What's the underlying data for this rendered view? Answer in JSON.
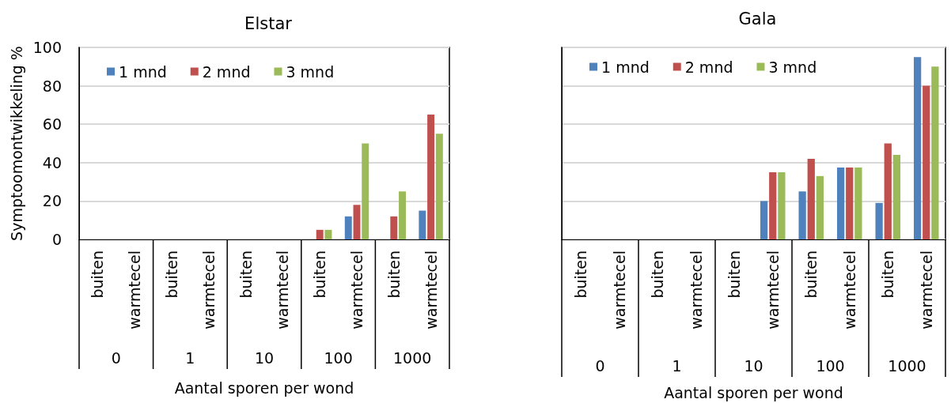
{
  "chart_data": [
    {
      "type": "bar",
      "title": "Elstar",
      "xlabel": "Aantal sporen per wond",
      "ylabel": "Symptoomontwikkeling %",
      "categories": [
        "buiten",
        "warmtecel",
        "buiten",
        "warmtecel",
        "buiten",
        "warmtecel",
        "buiten",
        "warmtecel",
        "buiten",
        "warmtecel"
      ],
      "annotations": [
        "0",
        "1",
        "10",
        "100",
        "1000"
      ],
      "series": [
        {
          "name": "1 mnd",
          "color": "#4f81bd",
          "values": [
            0,
            0,
            0,
            0,
            0,
            0,
            0,
            12,
            0,
            15
          ]
        },
        {
          "name": "2 mnd",
          "color": "#c0504d",
          "values": [
            0,
            0,
            0,
            0,
            0,
            0,
            5,
            18,
            12,
            65
          ]
        },
        {
          "name": "3 mnd",
          "color": "#9bbb59",
          "values": [
            0,
            0,
            0,
            0,
            0,
            0,
            5,
            50,
            25,
            55
          ]
        }
      ],
      "ylim": [
        0,
        100
      ],
      "yticks": [
        0,
        20,
        40,
        60,
        80,
        100
      ],
      "grid": "y",
      "legend": "top left"
    },
    {
      "type": "bar",
      "title": "Gala",
      "xlabel": "Aantal sporen per wond",
      "categories": [
        "buiten",
        "warmtecel",
        "buiten",
        "warmtecel",
        "buiten",
        "warmtecel",
        "buiten",
        "warmtecel",
        "buiten",
        "warmtecel"
      ],
      "annotations": [
        "0",
        "1",
        "10",
        "100",
        "1000"
      ],
      "series": [
        {
          "name": "1 mnd",
          "color": "#4f81bd",
          "values": [
            0,
            0,
            0,
            0,
            0,
            20,
            25,
            37.5,
            19,
            95
          ]
        },
        {
          "name": "2 mnd",
          "color": "#c0504d",
          "values": [
            0,
            0,
            0,
            0,
            0,
            35,
            42,
            37.5,
            50,
            80
          ]
        },
        {
          "name": "3 mnd",
          "color": "#9bbb59",
          "values": [
            0,
            0,
            0,
            0,
            0,
            35,
            33,
            37.5,
            44,
            90
          ]
        }
      ],
      "ylim": [
        0,
        100
      ],
      "yticks": [
        0,
        20,
        40,
        60,
        80,
        100
      ],
      "grid": "y",
      "legend": "top left",
      "tick_labels": "x"
    }
  ]
}
